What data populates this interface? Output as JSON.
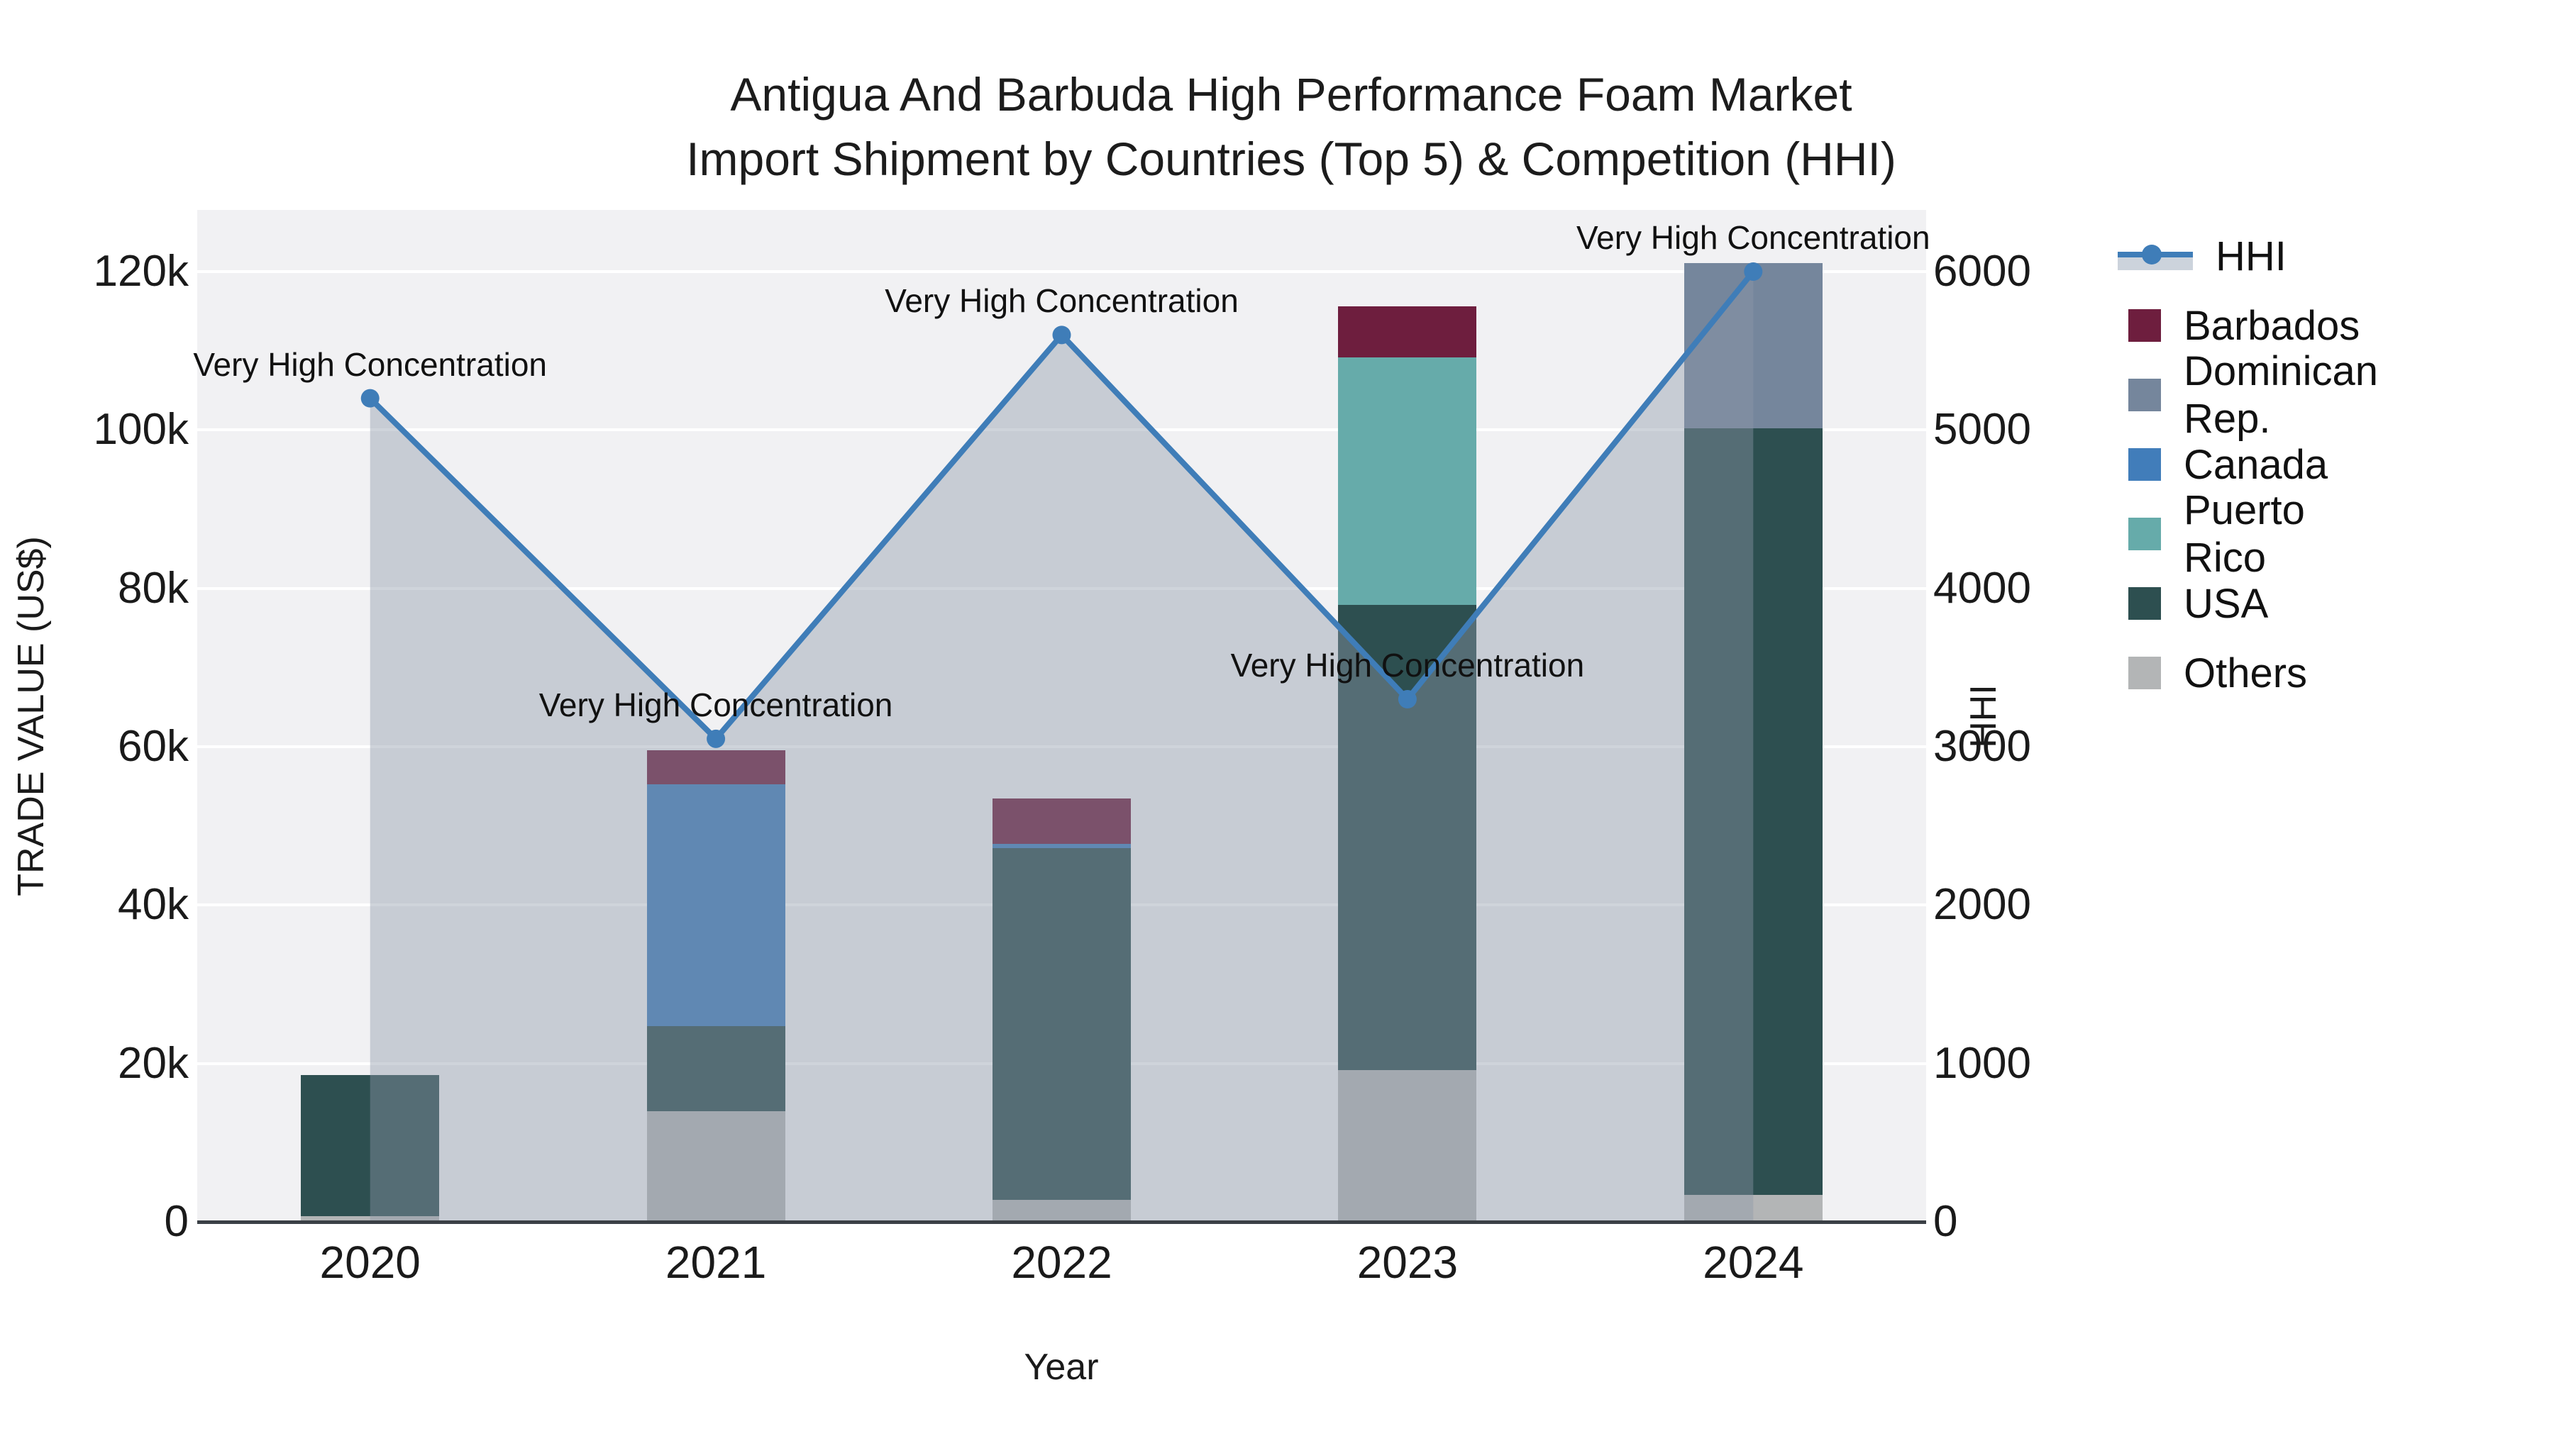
{
  "title": {
    "line1": "Antigua And Barbuda High Performance Foam Market",
    "line2": "Import Shipment by Countries (Top 5) & Competition (HHI)"
  },
  "axes": {
    "x_title": "Year",
    "y_left_title": "TRADE VALUE (US$)",
    "y_right_title": "HHI",
    "y_left_ticks": [
      "0",
      "20k",
      "40k",
      "60k",
      "80k",
      "100k",
      "120k"
    ],
    "y_right_ticks": [
      "0",
      "1000",
      "2000",
      "3000",
      "4000",
      "5000",
      "6000"
    ]
  },
  "annotation_text": "Very High Concentration",
  "colors": {
    "barbados": "#6e1e3e",
    "dominican": "#75869c",
    "canada": "#417dba",
    "puerto_rico": "#66abaa",
    "usa": "#2d4f50",
    "others": "#b3b5b6",
    "hhi_line": "#3f7db8",
    "area_fill": "rgba(141,153,170,0.42)",
    "plot_bg": "#f1f1f3",
    "axis_line": "#3b4046"
  },
  "legend_items": [
    {
      "label": "HHI",
      "type": "line",
      "color": "#3f7db8"
    },
    {
      "label": "Barbados",
      "type": "swatch",
      "color": "#6e1e3e"
    },
    {
      "label": "Dominican Rep.",
      "type": "swatch",
      "color": "#75869c"
    },
    {
      "label": "Canada",
      "type": "swatch",
      "color": "#417dba"
    },
    {
      "label": "Puerto Rico",
      "type": "swatch",
      "color": "#66abaa"
    },
    {
      "label": "USA",
      "type": "swatch",
      "color": "#2d4f50"
    },
    {
      "label": "Others",
      "type": "swatch",
      "color": "#b3b5b6"
    }
  ],
  "chart_data": {
    "type": "bar",
    "subtype": "stacked-bars-with-line",
    "categories": [
      "2020",
      "2021",
      "2022",
      "2023",
      "2024"
    ],
    "series": [
      {
        "name": "Others",
        "color_key": "others",
        "values": [
          750,
          14000,
          2800,
          19200,
          3400
        ]
      },
      {
        "name": "USA",
        "color_key": "usa",
        "values": [
          17750,
          10700,
          44400,
          58700,
          96800
        ]
      },
      {
        "name": "Puerto Rico",
        "color_key": "puerto_rico",
        "values": [
          0,
          0,
          0,
          31300,
          0
        ]
      },
      {
        "name": "Canada",
        "color_key": "canada",
        "values": [
          0,
          30550,
          550,
          0,
          0
        ]
      },
      {
        "name": "Dominican Rep.",
        "color_key": "dominican",
        "values": [
          0,
          0,
          0,
          0,
          20900
        ]
      },
      {
        "name": "Barbados",
        "color_key": "barbados",
        "values": [
          0,
          4300,
          5700,
          6400,
          0
        ]
      }
    ],
    "line_series": {
      "name": "HHI",
      "values": [
        5200,
        3050,
        5600,
        3300,
        6000
      ],
      "axis": "right",
      "area_fill": true
    },
    "annotations": [
      "Very High Concentration",
      "Very High Concentration",
      "Very High Concentration",
      "Very High Concentration",
      "Very High Concentration"
    ],
    "title": "Antigua And Barbuda High Performance Foam Market Import Shipment by Countries (Top 5) & Competition (HHI)",
    "xlabel": "Year",
    "ylabel_left": "TRADE VALUE (US$)",
    "ylabel_right": "HHI",
    "y_left_range": [
      0,
      120000
    ],
    "y_right_range": [
      0,
      6000
    ],
    "grid": true,
    "legend_position": "right"
  }
}
